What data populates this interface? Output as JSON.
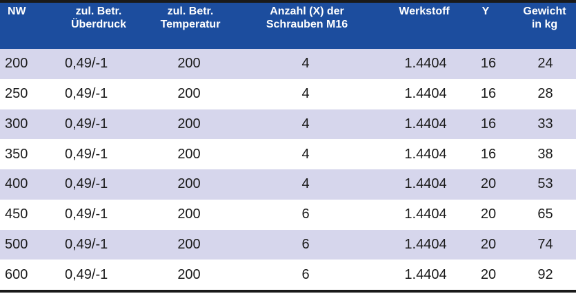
{
  "table": {
    "headers": [
      {
        "line1": "NW",
        "line2": ""
      },
      {
        "line1": "zul. Betr.",
        "line2": "Überdruck"
      },
      {
        "line1": "zul. Betr.",
        "line2": "Temperatur"
      },
      {
        "line1": "Anzahl (X) der",
        "line2": "Schrauben M16"
      },
      {
        "line1": "Werkstoff",
        "line2": ""
      },
      {
        "line1": "Y",
        "line2": ""
      },
      {
        "line1": "Gewicht",
        "line2": "in kg"
      }
    ],
    "rows": [
      [
        "200",
        "0,49/-1",
        "200",
        "4",
        "1.4404",
        "16",
        "24"
      ],
      [
        "250",
        "0,49/-1",
        "200",
        "4",
        "1.4404",
        "16",
        "28"
      ],
      [
        "300",
        "0,49/-1",
        "200",
        "4",
        "1.4404",
        "16",
        "33"
      ],
      [
        "350",
        "0,49/-1",
        "200",
        "4",
        "1.4404",
        "16",
        "38"
      ],
      [
        "400",
        "0,49/-1",
        "200",
        "4",
        "1.4404",
        "20",
        "53"
      ],
      [
        "450",
        "0,49/-1",
        "200",
        "6",
        "1.4404",
        "20",
        "65"
      ],
      [
        "500",
        "0,49/-1",
        "200",
        "6",
        "1.4404",
        "20",
        "74"
      ],
      [
        "600",
        "0,49/-1",
        "200",
        "6",
        "1.4404",
        "20",
        "92"
      ]
    ]
  },
  "colors": {
    "header_bg": "#1c4d9e",
    "header_text": "#ffffff",
    "stripe_bg": "#d6d6ec",
    "row_bg": "#ffffff",
    "text": "#1a1a1a",
    "rule": "#1a1a1a"
  }
}
